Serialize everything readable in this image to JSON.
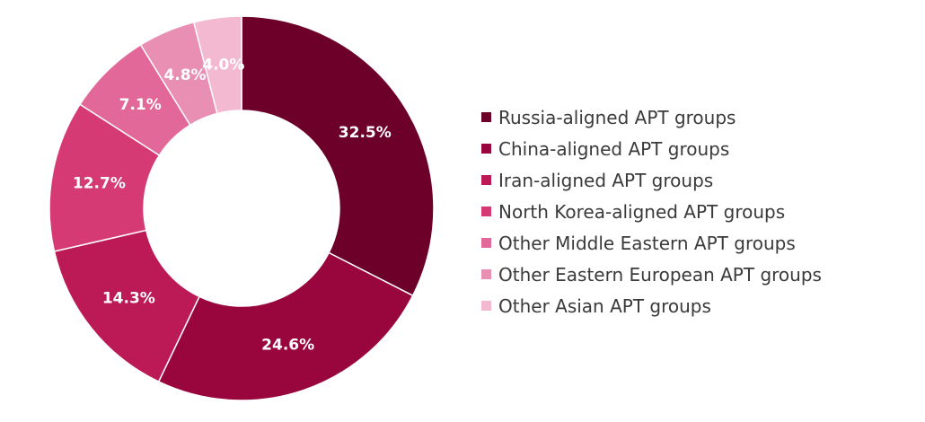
{
  "chart_data": {
    "type": "pie",
    "style": "donut",
    "title": "",
    "legend_position": "right",
    "slices": [
      {
        "name": "Russia-aligned APT groups",
        "value": 32.5,
        "label": "32.5%",
        "color": "#6d0029"
      },
      {
        "name": "China-aligned APT groups",
        "value": 24.6,
        "label": "24.6%",
        "color": "#99063e"
      },
      {
        "name": "Iran-aligned APT groups",
        "value": 14.3,
        "label": "14.3%",
        "color": "#bc1a56"
      },
      {
        "name": "North Korea-aligned APT groups",
        "value": 12.7,
        "label": "12.7%",
        "color": "#d63a74"
      },
      {
        "name": "Other Middle Eastern APT groups",
        "value": 7.1,
        "label": "7.1%",
        "color": "#e2689a"
      },
      {
        "name": "Other Eastern European APT groups",
        "value": 4.8,
        "label": "4.8%",
        "color": "#ea8fb4"
      },
      {
        "name": "Other Asian APT groups",
        "value": 4.0,
        "label": "4.0%",
        "color": "#f3b9d0"
      }
    ]
  }
}
